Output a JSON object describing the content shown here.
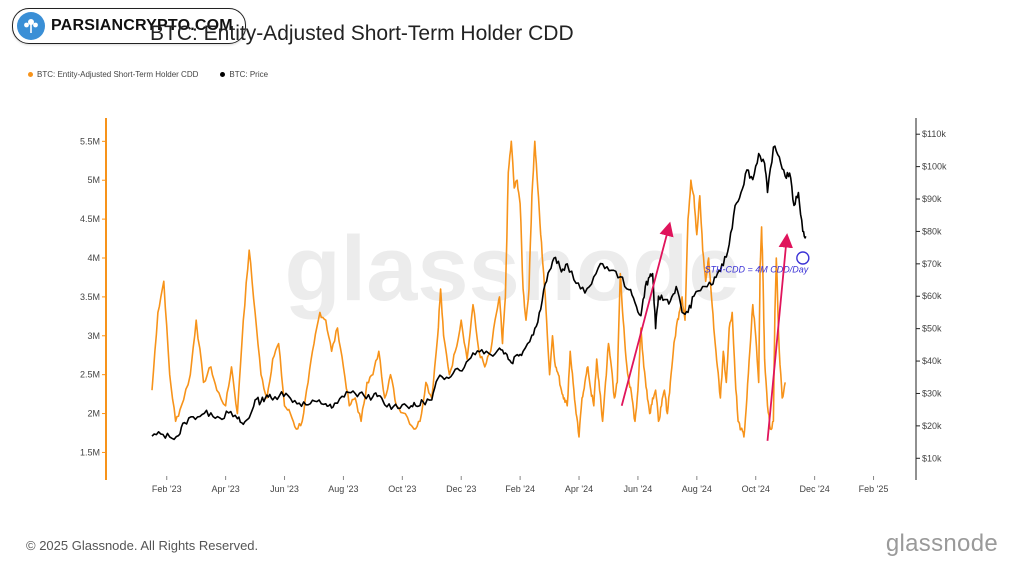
{
  "badge": {
    "text": "PARSIANCRYPTO.COM",
    "icon": "tree-logo-icon",
    "color": "#3a8fd6"
  },
  "page": {
    "title": "BTC: Entity-Adjusted Short-Term Holder CDD"
  },
  "footer": {
    "copyright": "© 2025 Glassnode. All Rights Reserved.",
    "brand": "glassnode"
  },
  "colors": {
    "cdd": "#f7931a",
    "price": "#000000",
    "arrow": "#e0145c",
    "annotation": "#3b32d6",
    "axis": "#f7931a"
  },
  "chart_data": {
    "type": "line",
    "title": "BTC: Entity-Adjusted Short-Term Holder CDD",
    "watermark": "glassnode",
    "legend": [
      "BTC: Entity-Adjusted Short-Term Holder CDD",
      "BTC: Price"
    ],
    "x_ticks": [
      "Feb '23",
      "Apr '23",
      "Jun '23",
      "Aug '23",
      "Oct '23",
      "Dec '23",
      "Feb '24",
      "Apr '24",
      "Jun '24",
      "Aug '24",
      "Oct '24",
      "Dec '24",
      "Feb '25"
    ],
    "y_left": {
      "ticks": [
        "1.5M",
        "2M",
        "2.5M",
        "3M",
        "3.5M",
        "4M",
        "4.5M",
        "5M",
        "5.5M"
      ],
      "range": [
        1.3,
        5.8
      ],
      "unit": "M"
    },
    "y_right": {
      "ticks": [
        "$10k",
        "$20k",
        "$30k",
        "$40k",
        "$50k",
        "$60k",
        "$70k",
        "$80k",
        "$90k",
        "$100k",
        "$110k"
      ],
      "range": [
        7,
        115
      ],
      "unit": "k"
    },
    "series": [
      {
        "name": "BTC: Entity-Adjusted Short-Term Holder CDD",
        "axis": "left",
        "points": [
          [
            0.0,
            2.3
          ],
          [
            0.2,
            3.3
          ],
          [
            0.4,
            3.7
          ],
          [
            0.6,
            2.5
          ],
          [
            0.8,
            1.9
          ],
          [
            1.0,
            2.1
          ],
          [
            1.3,
            2.5
          ],
          [
            1.5,
            3.2
          ],
          [
            1.75,
            2.4
          ],
          [
            2.0,
            2.6
          ],
          [
            2.2,
            2.3
          ],
          [
            2.5,
            2.1
          ],
          [
            2.7,
            2.6
          ],
          [
            2.9,
            2.0
          ],
          [
            3.1,
            3.2
          ],
          [
            3.3,
            4.1
          ],
          [
            3.5,
            3.3
          ],
          [
            3.7,
            2.5
          ],
          [
            3.9,
            2.2
          ],
          [
            4.1,
            2.7
          ],
          [
            4.3,
            2.9
          ],
          [
            4.5,
            2.1
          ],
          [
            4.7,
            2.0
          ],
          [
            4.9,
            1.8
          ],
          [
            5.1,
            1.9
          ],
          [
            5.3,
            2.4
          ],
          [
            5.5,
            2.9
          ],
          [
            5.7,
            3.3
          ],
          [
            5.9,
            3.2
          ],
          [
            6.1,
            2.8
          ],
          [
            6.3,
            3.1
          ],
          [
            6.5,
            2.6
          ],
          [
            6.7,
            2.1
          ],
          [
            6.9,
            2.2
          ],
          [
            7.1,
            1.9
          ],
          [
            7.3,
            2.4
          ],
          [
            7.5,
            2.5
          ],
          [
            7.7,
            2.8
          ],
          [
            7.9,
            2.2
          ],
          [
            8.1,
            2.5
          ],
          [
            8.3,
            2.1
          ],
          [
            8.6,
            2.0
          ],
          [
            8.9,
            1.8
          ],
          [
            9.1,
            1.9
          ],
          [
            9.3,
            2.4
          ],
          [
            9.5,
            2.2
          ],
          [
            9.7,
            3.0
          ],
          [
            9.8,
            3.6
          ],
          [
            9.9,
            3.0
          ],
          [
            10.1,
            2.5
          ],
          [
            10.3,
            2.8
          ],
          [
            10.5,
            3.2
          ],
          [
            10.7,
            2.7
          ],
          [
            10.9,
            3.4
          ],
          [
            11.1,
            2.8
          ],
          [
            11.3,
            2.6
          ],
          [
            11.5,
            2.8
          ],
          [
            11.7,
            3.3
          ],
          [
            11.8,
            3.5
          ],
          [
            11.9,
            2.9
          ],
          [
            12.0,
            3.5
          ],
          [
            12.1,
            5.1
          ],
          [
            12.2,
            5.5
          ],
          [
            12.3,
            4.9
          ],
          [
            12.4,
            5.0
          ],
          [
            12.5,
            4.7
          ],
          [
            12.6,
            3.6
          ],
          [
            12.7,
            3.2
          ],
          [
            12.8,
            3.6
          ],
          [
            12.9,
            4.8
          ],
          [
            13.0,
            5.5
          ],
          [
            13.1,
            4.9
          ],
          [
            13.2,
            4.3
          ],
          [
            13.3,
            3.8
          ],
          [
            13.4,
            3.2
          ],
          [
            13.5,
            2.5
          ],
          [
            13.6,
            3.0
          ],
          [
            13.7,
            2.6
          ],
          [
            13.8,
            2.5
          ],
          [
            13.9,
            2.3
          ],
          [
            14.0,
            2.2
          ],
          [
            14.1,
            2.1
          ],
          [
            14.2,
            2.8
          ],
          [
            14.3,
            2.4
          ],
          [
            14.4,
            2.0
          ],
          [
            14.5,
            1.7
          ],
          [
            14.6,
            2.2
          ],
          [
            14.7,
            2.4
          ],
          [
            14.8,
            2.6
          ],
          [
            14.9,
            2.3
          ],
          [
            15.0,
            2.1
          ],
          [
            15.1,
            2.7
          ],
          [
            15.2,
            2.3
          ],
          [
            15.3,
            1.9
          ],
          [
            15.4,
            2.4
          ],
          [
            15.5,
            2.9
          ],
          [
            15.6,
            2.6
          ],
          [
            15.7,
            2.2
          ],
          [
            15.8,
            2.4
          ],
          [
            15.9,
            3.8
          ],
          [
            16.0,
            3.2
          ],
          [
            16.1,
            2.7
          ],
          [
            16.2,
            2.4
          ],
          [
            16.3,
            2.2
          ],
          [
            16.4,
            1.9
          ],
          [
            16.5,
            2.3
          ],
          [
            16.6,
            3.1
          ],
          [
            16.7,
            2.6
          ],
          [
            16.8,
            2.3
          ],
          [
            16.9,
            2.0
          ],
          [
            17.0,
            2.2
          ],
          [
            17.1,
            2.3
          ],
          [
            17.2,
            1.9
          ],
          [
            17.3,
            2.1
          ],
          [
            17.4,
            2.3
          ],
          [
            17.5,
            2.0
          ],
          [
            17.6,
            2.4
          ],
          [
            17.7,
            2.8
          ],
          [
            17.8,
            3.1
          ],
          [
            17.9,
            3.3
          ],
          [
            18.0,
            3.5
          ],
          [
            18.1,
            3.2
          ],
          [
            18.2,
            4.5
          ],
          [
            18.3,
            5.0
          ],
          [
            18.4,
            4.8
          ],
          [
            18.5,
            4.3
          ],
          [
            18.6,
            4.8
          ],
          [
            18.7,
            4.1
          ],
          [
            18.8,
            3.7
          ],
          [
            18.9,
            4.0
          ],
          [
            19.0,
            3.5
          ],
          [
            19.1,
            3.0
          ],
          [
            19.2,
            2.6
          ],
          [
            19.3,
            2.2
          ],
          [
            19.4,
            2.8
          ],
          [
            19.5,
            2.4
          ],
          [
            19.6,
            3.1
          ],
          [
            19.7,
            3.3
          ],
          [
            19.8,
            2.5
          ],
          [
            19.9,
            1.9
          ],
          [
            20.0,
            1.8
          ],
          [
            20.1,
            1.7
          ],
          [
            20.2,
            2.2
          ],
          [
            20.3,
            2.8
          ],
          [
            20.4,
            3.4
          ],
          [
            20.5,
            3.0
          ],
          [
            20.6,
            2.4
          ],
          [
            20.65,
            3.9
          ],
          [
            20.7,
            4.4
          ],
          [
            20.75,
            3.7
          ],
          [
            20.8,
            2.7
          ],
          [
            20.9,
            2.1
          ],
          [
            21.0,
            1.8
          ],
          [
            21.1,
            1.9
          ],
          [
            21.15,
            3.3
          ],
          [
            21.2,
            4.0
          ],
          [
            21.3,
            2.8
          ],
          [
            21.4,
            2.2
          ],
          [
            21.5,
            2.4
          ]
        ]
      },
      {
        "name": "BTC: Price",
        "axis": "right",
        "points": [
          [
            0.0,
            16.8
          ],
          [
            0.3,
            17.5
          ],
          [
            0.6,
            16.6
          ],
          [
            0.9,
            17.0
          ],
          [
            1.1,
            21.0
          ],
          [
            1.4,
            22.8
          ],
          [
            1.7,
            23.5
          ],
          [
            2.0,
            24.0
          ],
          [
            2.3,
            22.5
          ],
          [
            2.6,
            24.0
          ],
          [
            2.9,
            22.2
          ],
          [
            3.1,
            20.5
          ],
          [
            3.3,
            22.5
          ],
          [
            3.5,
            28.0
          ],
          [
            3.7,
            27.5
          ],
          [
            3.9,
            29.5
          ],
          [
            4.1,
            28.0
          ],
          [
            4.4,
            30.5
          ],
          [
            4.7,
            28.5
          ],
          [
            5.0,
            27.0
          ],
          [
            5.3,
            26.5
          ],
          [
            5.6,
            27.5
          ],
          [
            5.9,
            26.8
          ],
          [
            6.1,
            25.5
          ],
          [
            6.3,
            27.0
          ],
          [
            6.6,
            30.5
          ],
          [
            6.9,
            30.0
          ],
          [
            7.2,
            29.3
          ],
          [
            7.5,
            29.0
          ],
          [
            7.7,
            29.3
          ],
          [
            7.9,
            26.5
          ],
          [
            8.2,
            26.0
          ],
          [
            8.5,
            26.5
          ],
          [
            8.8,
            26.2
          ],
          [
            9.0,
            26.0
          ],
          [
            9.2,
            27.5
          ],
          [
            9.5,
            28.0
          ],
          [
            9.7,
            34.5
          ],
          [
            10.0,
            35.0
          ],
          [
            10.3,
            37.5
          ],
          [
            10.6,
            38.0
          ],
          [
            10.9,
            42.5
          ],
          [
            11.2,
            43.5
          ],
          [
            11.5,
            42.0
          ],
          [
            11.8,
            44.0
          ],
          [
            12.0,
            42.5
          ],
          [
            12.2,
            39.5
          ],
          [
            12.4,
            42.0
          ],
          [
            12.6,
            43.0
          ],
          [
            12.9,
            48.0
          ],
          [
            13.1,
            52.0
          ],
          [
            13.3,
            62.0
          ],
          [
            13.5,
            68.0
          ],
          [
            13.7,
            72.0
          ],
          [
            13.9,
            67.5
          ],
          [
            14.1,
            70.0
          ],
          [
            14.4,
            64.0
          ],
          [
            14.7,
            61.0
          ],
          [
            15.0,
            66.0
          ],
          [
            15.3,
            70.0
          ],
          [
            15.6,
            68.0
          ],
          [
            15.9,
            66.0
          ],
          [
            16.2,
            62.0
          ],
          [
            16.4,
            58.0
          ],
          [
            16.6,
            54.0
          ],
          [
            16.75,
            63.0
          ],
          [
            16.9,
            66.0
          ],
          [
            17.0,
            67.0
          ],
          [
            17.1,
            50.0
          ],
          [
            17.2,
            60.0
          ],
          [
            17.4,
            59.0
          ],
          [
            17.6,
            58.5
          ],
          [
            17.8,
            63.0
          ],
          [
            18.0,
            55.0
          ],
          [
            18.2,
            55.0
          ],
          [
            18.4,
            60.0
          ],
          [
            18.7,
            63.0
          ],
          [
            19.0,
            63.5
          ],
          [
            19.2,
            67.0
          ],
          [
            19.4,
            69.5
          ],
          [
            19.6,
            76.0
          ],
          [
            19.8,
            88.0
          ],
          [
            20.0,
            92.0
          ],
          [
            20.2,
            99.0
          ],
          [
            20.4,
            96.0
          ],
          [
            20.6,
            104.0
          ],
          [
            20.8,
            101.0
          ],
          [
            20.9,
            92.0
          ],
          [
            21.1,
            106.0
          ],
          [
            21.3,
            103.0
          ],
          [
            21.5,
            97.0
          ],
          [
            21.65,
            98.0
          ],
          [
            21.8,
            88.0
          ],
          [
            21.95,
            92.0
          ],
          [
            22.1,
            80.0
          ],
          [
            22.2,
            78.5
          ]
        ]
      }
    ],
    "annotations": [
      {
        "type": "text",
        "text": "STH-CDD = 4M CDD/Day",
        "x": 22.15,
        "y_left": 3.85
      },
      {
        "type": "circle",
        "x": 22.1,
        "y_left": 4.0
      },
      {
        "type": "arrow",
        "from": [
          15.95,
          2.1
        ],
        "to": [
          17.55,
          4.4
        ]
      },
      {
        "type": "arrow",
        "from": [
          20.9,
          1.65
        ],
        "to": [
          21.55,
          4.25
        ]
      }
    ]
  }
}
